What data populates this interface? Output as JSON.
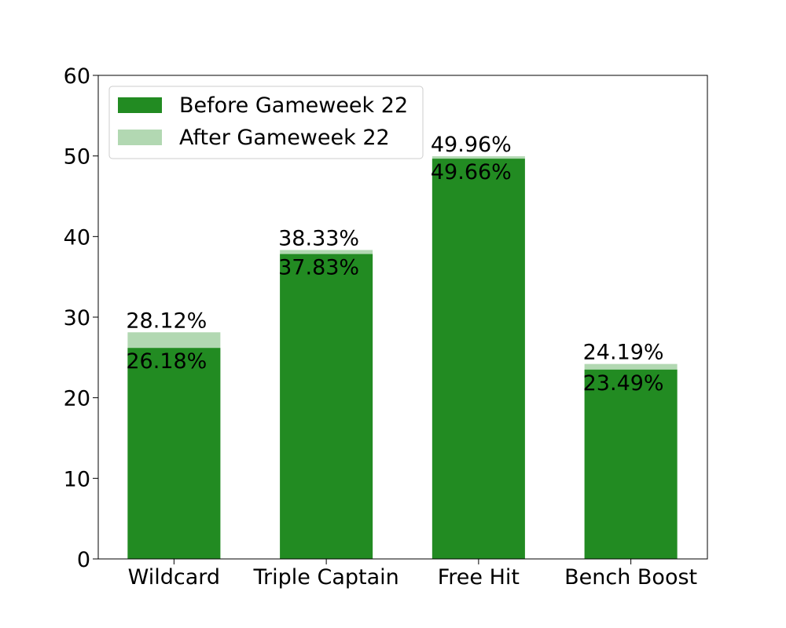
{
  "chart_data": {
    "type": "bar",
    "stacked_overlay": true,
    "categories": [
      "Wildcard",
      "Triple Captain",
      "Free Hit",
      "Bench Boost"
    ],
    "series": [
      {
        "name": "Before Gameweek 22",
        "values": [
          26.18,
          37.83,
          49.66,
          23.49
        ],
        "labels": [
          "26.18%",
          "37.83%",
          "49.66%",
          "23.49%"
        ],
        "color": "#228b22"
      },
      {
        "name": "After Gameweek 22",
        "values": [
          28.12,
          38.33,
          49.96,
          24.19
        ],
        "labels": [
          "28.12%",
          "38.33%",
          "49.96%",
          "24.19%"
        ],
        "color": "#b2d8b2"
      }
    ],
    "yticks": [
      "0",
      "10",
      "20",
      "30",
      "40",
      "50",
      "60"
    ],
    "ylim": [
      0,
      60
    ],
    "grid": false,
    "legend_position": "top-left"
  }
}
